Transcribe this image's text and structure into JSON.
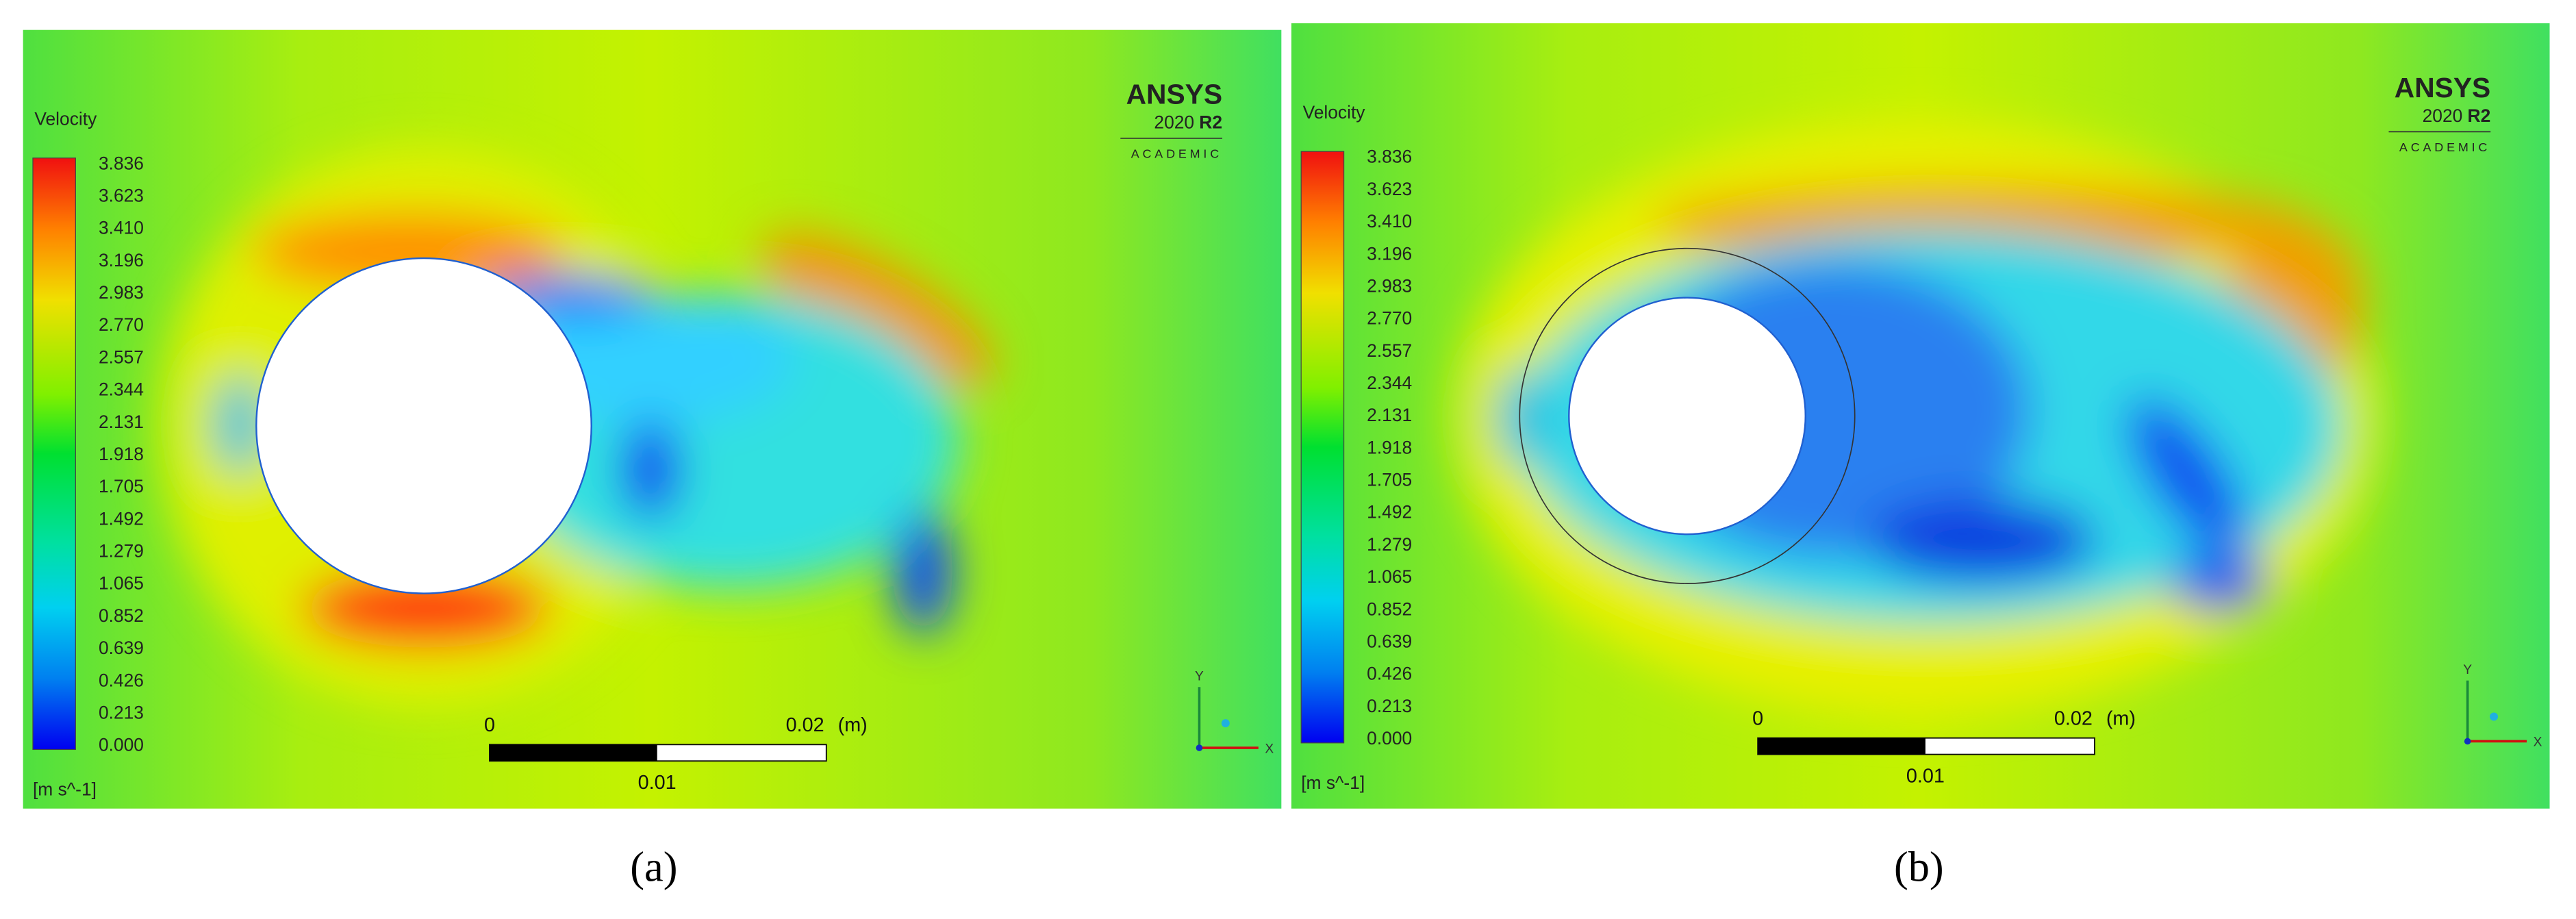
{
  "figure": {
    "panels": [
      {
        "label": "(a)",
        "colorbar": {
          "title": "Velocity",
          "ticks": [
            "3.836",
            "3.623",
            "3.410",
            "3.196",
            "2.983",
            "2.770",
            "2.557",
            "2.344",
            "2.131",
            "1.918",
            "1.705",
            "1.492",
            "1.279",
            "1.065",
            "0.852",
            "0.639",
            "0.426",
            "0.213",
            "0.000"
          ],
          "unit": "[m s^-1]"
        },
        "logo": {
          "brand": "ANSYS",
          "version": "2020",
          "release": "R2",
          "edition": "ACADEMIC"
        },
        "scale_bar": {
          "start": "0",
          "end": "0.02",
          "unit": "(m)",
          "mid": "0.01"
        },
        "axes": {
          "y": "Y",
          "x": "X"
        }
      },
      {
        "label": "(b)",
        "colorbar": {
          "title": "Velocity",
          "ticks": [
            "3.836",
            "3.623",
            "3.410",
            "3.196",
            "2.983",
            "2.770",
            "2.557",
            "2.344",
            "2.131",
            "1.918",
            "1.705",
            "1.492",
            "1.279",
            "1.065",
            "0.852",
            "0.639",
            "0.426",
            "0.213",
            "0.000"
          ],
          "unit": "[m s^-1]"
        },
        "logo": {
          "brand": "ANSYS",
          "version": "2020",
          "release": "R2",
          "edition": "ACADEMIC"
        },
        "scale_bar": {
          "start": "0",
          "end": "0.02",
          "unit": "(m)",
          "mid": "0.01"
        },
        "axes": {
          "y": "Y",
          "x": "X"
        }
      }
    ]
  }
}
